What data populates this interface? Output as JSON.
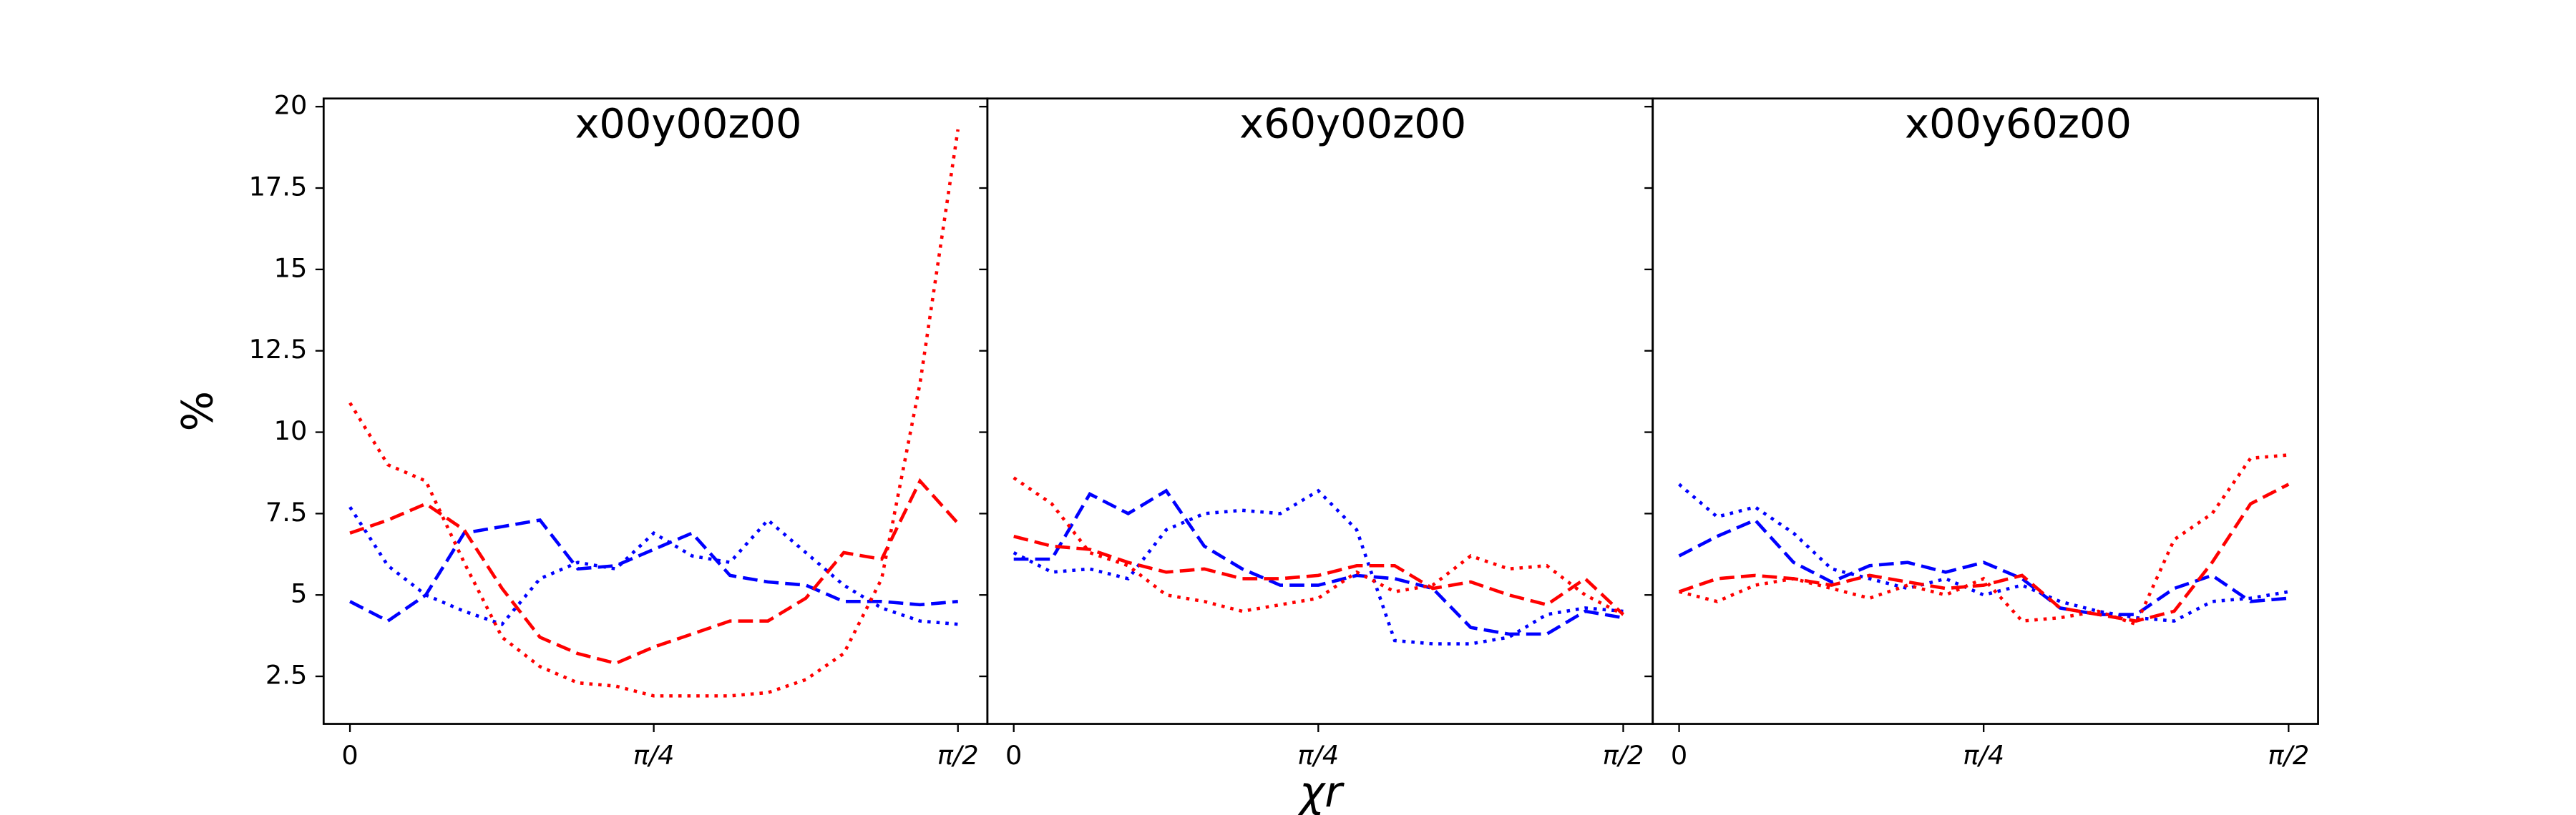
{
  "chart_data": [
    {
      "type": "line",
      "title": "x00y00z00",
      "ylabel": "%",
      "x": [
        0,
        0.098,
        0.196,
        0.295,
        0.393,
        0.491,
        0.589,
        0.687,
        0.785,
        0.884,
        0.982,
        1.08,
        1.178,
        1.276,
        1.374,
        1.473,
        1.571
      ],
      "xlim": [
        -0.068,
        1.647
      ],
      "xticks": [
        0,
        {
          "value": 0.785,
          "label": "π/4"
        },
        {
          "value": 1.571,
          "label": "π/2"
        }
      ],
      "ylim": [
        1.04,
        20.25
      ],
      "yticks": [
        2.5,
        5.0,
        7.5,
        10.0,
        12.5,
        15.0,
        17.5,
        20.0
      ],
      "series": [
        {
          "color": "#0000ff",
          "dash": "dashed",
          "values": [
            4.8,
            4.2,
            5.0,
            6.9,
            7.1,
            7.3,
            5.8,
            5.9,
            6.4,
            6.9,
            5.6,
            5.4,
            5.3,
            4.8,
            4.8,
            4.7,
            4.8
          ]
        },
        {
          "color": "#0000ff",
          "dash": "dotted",
          "values": [
            7.7,
            5.9,
            5.0,
            4.5,
            4.1,
            5.5,
            6.0,
            5.8,
            6.9,
            6.2,
            6.0,
            7.3,
            6.3,
            5.3,
            4.6,
            4.2,
            4.1
          ]
        },
        {
          "color": "#ff0000",
          "dash": "dashed",
          "values": [
            6.9,
            7.3,
            7.8,
            7.0,
            5.2,
            3.7,
            3.2,
            2.9,
            3.4,
            3.8,
            4.2,
            4.2,
            4.9,
            6.3,
            6.1,
            8.5,
            7.2
          ]
        },
        {
          "color": "#ff0000",
          "dash": "dotted",
          "values": [
            10.9,
            9.0,
            8.5,
            6.0,
            3.7,
            2.8,
            2.3,
            2.2,
            1.9,
            1.9,
            1.9,
            2.0,
            2.4,
            3.2,
            5.5,
            11.5,
            19.3
          ]
        }
      ]
    },
    {
      "type": "line",
      "title": "x60y00z00",
      "xlabel": "χr",
      "x": [
        0,
        0.098,
        0.196,
        0.295,
        0.393,
        0.491,
        0.589,
        0.687,
        0.785,
        0.884,
        0.982,
        1.08,
        1.178,
        1.276,
        1.374,
        1.473,
        1.571
      ],
      "xlim": [
        -0.068,
        1.647
      ],
      "xticks": [
        0,
        {
          "value": 0.785,
          "label": "π/4"
        },
        {
          "value": 1.571,
          "label": "π/2"
        }
      ],
      "series": [
        {
          "color": "#0000ff",
          "dash": "dashed",
          "values": [
            6.1,
            6.1,
            8.1,
            7.5,
            8.2,
            6.5,
            5.8,
            5.3,
            5.3,
            5.6,
            5.5,
            5.2,
            4.0,
            3.8,
            3.8,
            4.5,
            4.3
          ]
        },
        {
          "color": "#0000ff",
          "dash": "dotted",
          "values": [
            6.3,
            5.7,
            5.8,
            5.5,
            7.0,
            7.5,
            7.6,
            7.5,
            8.2,
            7.0,
            3.6,
            3.5,
            3.5,
            3.7,
            4.4,
            4.6,
            4.5
          ]
        },
        {
          "color": "#ff0000",
          "dash": "dashed",
          "values": [
            6.8,
            6.5,
            6.4,
            6.0,
            5.7,
            5.8,
            5.5,
            5.5,
            5.6,
            5.9,
            5.9,
            5.2,
            5.4,
            5.0,
            4.7,
            5.5,
            4.4
          ]
        },
        {
          "color": "#ff0000",
          "dash": "dotted",
          "values": [
            8.6,
            7.8,
            6.3,
            5.9,
            5.0,
            4.8,
            4.5,
            4.7,
            4.9,
            5.7,
            5.1,
            5.3,
            6.2,
            5.8,
            5.9,
            5.0,
            4.4
          ]
        }
      ]
    },
    {
      "type": "line",
      "title": "x00y60z00",
      "x": [
        0,
        0.098,
        0.196,
        0.295,
        0.393,
        0.491,
        0.589,
        0.687,
        0.785,
        0.884,
        0.982,
        1.08,
        1.178,
        1.276,
        1.374,
        1.473,
        1.571
      ],
      "xlim": [
        -0.068,
        1.647
      ],
      "xticks": [
        0,
        {
          "value": 0.785,
          "label": "π/4"
        },
        {
          "value": 1.571,
          "label": "π/2"
        }
      ],
      "series": [
        {
          "color": "#0000ff",
          "dash": "dashed",
          "values": [
            6.2,
            6.8,
            7.3,
            6.0,
            5.4,
            5.9,
            6.0,
            5.7,
            6.0,
            5.5,
            4.6,
            4.4,
            4.4,
            5.2,
            5.6,
            4.8,
            4.9
          ]
        },
        {
          "color": "#0000ff",
          "dash": "dotted",
          "values": [
            8.4,
            7.4,
            7.7,
            6.9,
            5.8,
            5.5,
            5.2,
            5.5,
            5.0,
            5.3,
            4.8,
            4.5,
            4.3,
            4.2,
            4.8,
            4.9,
            5.1
          ]
        },
        {
          "color": "#ff0000",
          "dash": "dashed",
          "values": [
            5.1,
            5.5,
            5.6,
            5.5,
            5.3,
            5.6,
            5.4,
            5.2,
            5.3,
            5.6,
            4.6,
            4.4,
            4.2,
            4.5,
            6.0,
            7.8,
            8.4
          ]
        },
        {
          "color": "#ff0000",
          "dash": "dotted",
          "values": [
            5.1,
            4.8,
            5.3,
            5.5,
            5.2,
            4.9,
            5.3,
            5.0,
            5.5,
            4.2,
            4.3,
            4.5,
            4.1,
            6.7,
            7.5,
            9.2,
            9.3
          ]
        }
      ]
    }
  ]
}
